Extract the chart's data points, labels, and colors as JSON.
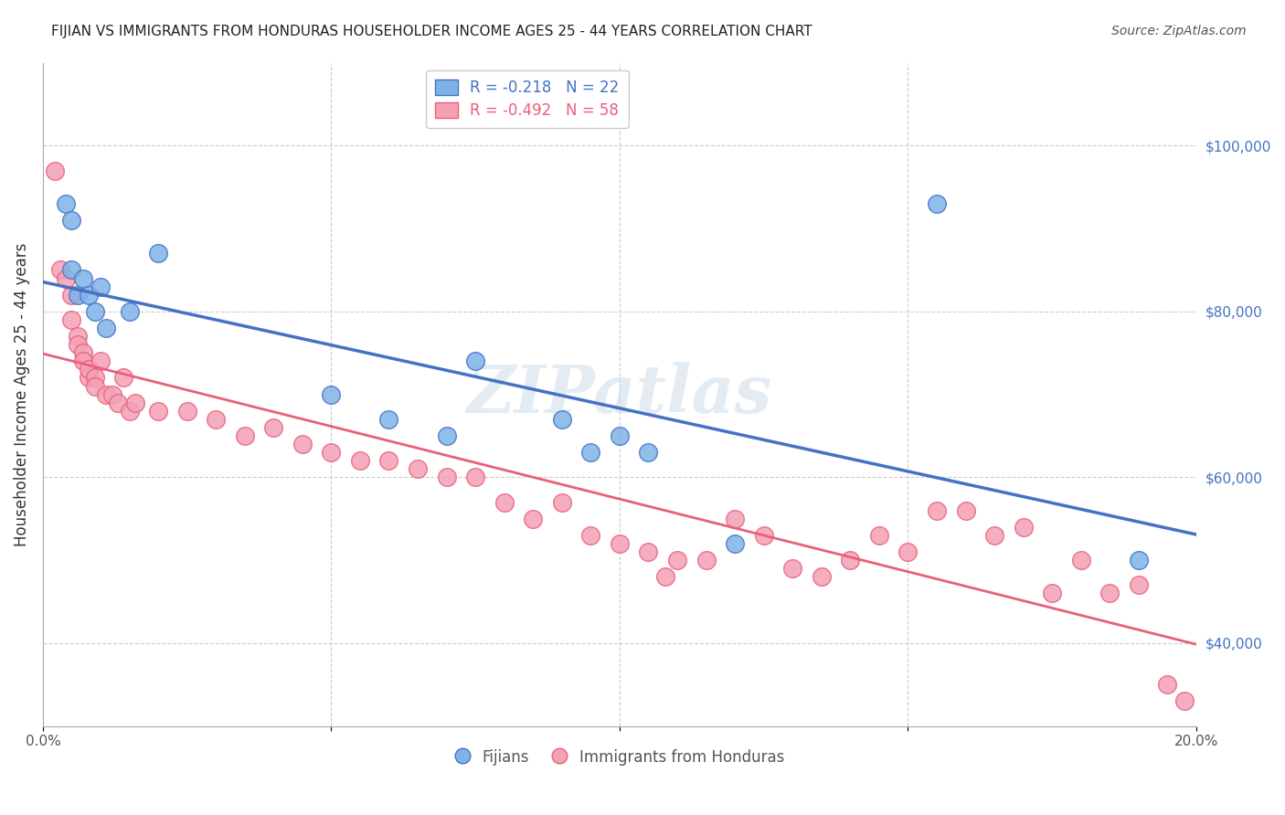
{
  "title": "FIJIAN VS IMMIGRANTS FROM HONDURAS HOUSEHOLDER INCOME AGES 25 - 44 YEARS CORRELATION CHART",
  "source": "Source: ZipAtlas.com",
  "xlabel_bottom": "",
  "ylabel": "Householder Income Ages 25 - 44 years",
  "xlim": [
    0.0,
    0.2
  ],
  "ylim": [
    30000,
    110000
  ],
  "xticks": [
    0.0,
    0.05,
    0.1,
    0.15,
    0.2
  ],
  "xticklabels": [
    "0.0%",
    "",
    "",
    "",
    "20.0%"
  ],
  "yticks_right": [
    40000,
    60000,
    80000,
    100000
  ],
  "ytick_labels_right": [
    "$40,000",
    "$60,000",
    "$80,000",
    "$100,000"
  ],
  "blue_R": "-0.218",
  "blue_N": "22",
  "pink_R": "-0.492",
  "pink_N": "58",
  "blue_color": "#7EB3E8",
  "pink_color": "#F4A0B5",
  "blue_line_color": "#4472C4",
  "pink_line_color": "#E8607A",
  "watermark": "ZIPatlas",
  "legend_label_blue": "Fijians",
  "legend_label_pink": "Immigrants from Honduras",
  "fijian_x": [
    0.004,
    0.005,
    0.005,
    0.006,
    0.007,
    0.008,
    0.009,
    0.01,
    0.011,
    0.015,
    0.02,
    0.05,
    0.06,
    0.07,
    0.075,
    0.09,
    0.095,
    0.1,
    0.105,
    0.12,
    0.155,
    0.19
  ],
  "fijian_y": [
    93000,
    85000,
    91000,
    82000,
    84000,
    82000,
    80000,
    83000,
    78000,
    80000,
    87000,
    70000,
    67000,
    65000,
    74000,
    67000,
    63000,
    65000,
    63000,
    52000,
    93000,
    50000
  ],
  "honduras_x": [
    0.002,
    0.003,
    0.004,
    0.005,
    0.005,
    0.006,
    0.006,
    0.007,
    0.007,
    0.008,
    0.008,
    0.009,
    0.009,
    0.01,
    0.011,
    0.012,
    0.013,
    0.014,
    0.015,
    0.016,
    0.02,
    0.025,
    0.03,
    0.035,
    0.04,
    0.045,
    0.05,
    0.055,
    0.06,
    0.065,
    0.07,
    0.075,
    0.08,
    0.085,
    0.09,
    0.095,
    0.1,
    0.105,
    0.108,
    0.11,
    0.115,
    0.12,
    0.125,
    0.13,
    0.135,
    0.14,
    0.145,
    0.15,
    0.155,
    0.16,
    0.165,
    0.17,
    0.175,
    0.18,
    0.185,
    0.19,
    0.195,
    0.198
  ],
  "honduras_y": [
    97000,
    85000,
    84000,
    82000,
    79000,
    77000,
    76000,
    75000,
    74000,
    72000,
    73000,
    72000,
    71000,
    74000,
    70000,
    70000,
    69000,
    72000,
    68000,
    69000,
    68000,
    68000,
    67000,
    65000,
    66000,
    64000,
    63000,
    62000,
    62000,
    61000,
    60000,
    60000,
    57000,
    55000,
    57000,
    53000,
    52000,
    51000,
    48000,
    50000,
    50000,
    55000,
    53000,
    49000,
    48000,
    50000,
    53000,
    51000,
    56000,
    56000,
    53000,
    54000,
    46000,
    50000,
    46000,
    47000,
    35000,
    33000
  ]
}
